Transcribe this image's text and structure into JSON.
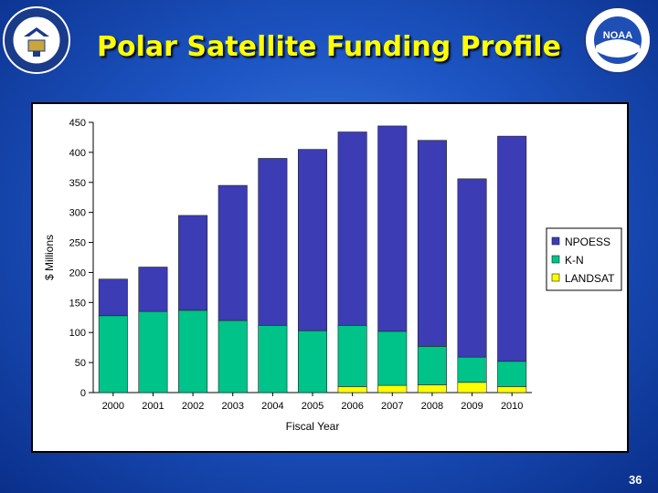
{
  "slide": {
    "title": "Polar Satellite Funding Profile",
    "page_number": "36"
  },
  "logos": {
    "left": {
      "name": "department-of-commerce-seal",
      "text": "DEPARTMENT OF COMMERCE • UNITED STATES OF AMERICA"
    },
    "right": {
      "name": "noaa-logo",
      "text": "NOAA"
    }
  },
  "colors": {
    "npoess": "#3c3cb4",
    "kn": "#00c38a",
    "landsat": "#ffff00",
    "background": "#1d55c4",
    "title": "#ffff00"
  },
  "chart_data": {
    "type": "bar",
    "stacked": true,
    "categories": [
      "2000",
      "2001",
      "2002",
      "2003",
      "2004",
      "2005",
      "2006",
      "2007",
      "2008",
      "2009",
      "2010"
    ],
    "series": [
      {
        "name": "LANDSAT",
        "values": [
          0,
          0,
          0,
          0,
          0,
          0,
          10,
          12,
          13,
          17,
          10
        ]
      },
      {
        "name": "K-N",
        "values": [
          128,
          135,
          137,
          120,
          112,
          103,
          102,
          90,
          64,
          42,
          42
        ]
      },
      {
        "name": "NPOESS",
        "values": [
          61,
          74,
          158,
          225,
          278,
          302,
          322,
          342,
          343,
          297,
          375
        ]
      }
    ],
    "xlabel": "Fiscal Year",
    "ylabel": "$ Millions",
    "ylim": [
      0,
      450
    ],
    "yticks": [
      "0",
      "50",
      "100",
      "150",
      "200",
      "250",
      "300",
      "350",
      "400",
      "450"
    ],
    "legend": [
      "NPOESS",
      "K-N",
      "LANDSAT"
    ],
    "legend_position": "right",
    "grid": false
  }
}
